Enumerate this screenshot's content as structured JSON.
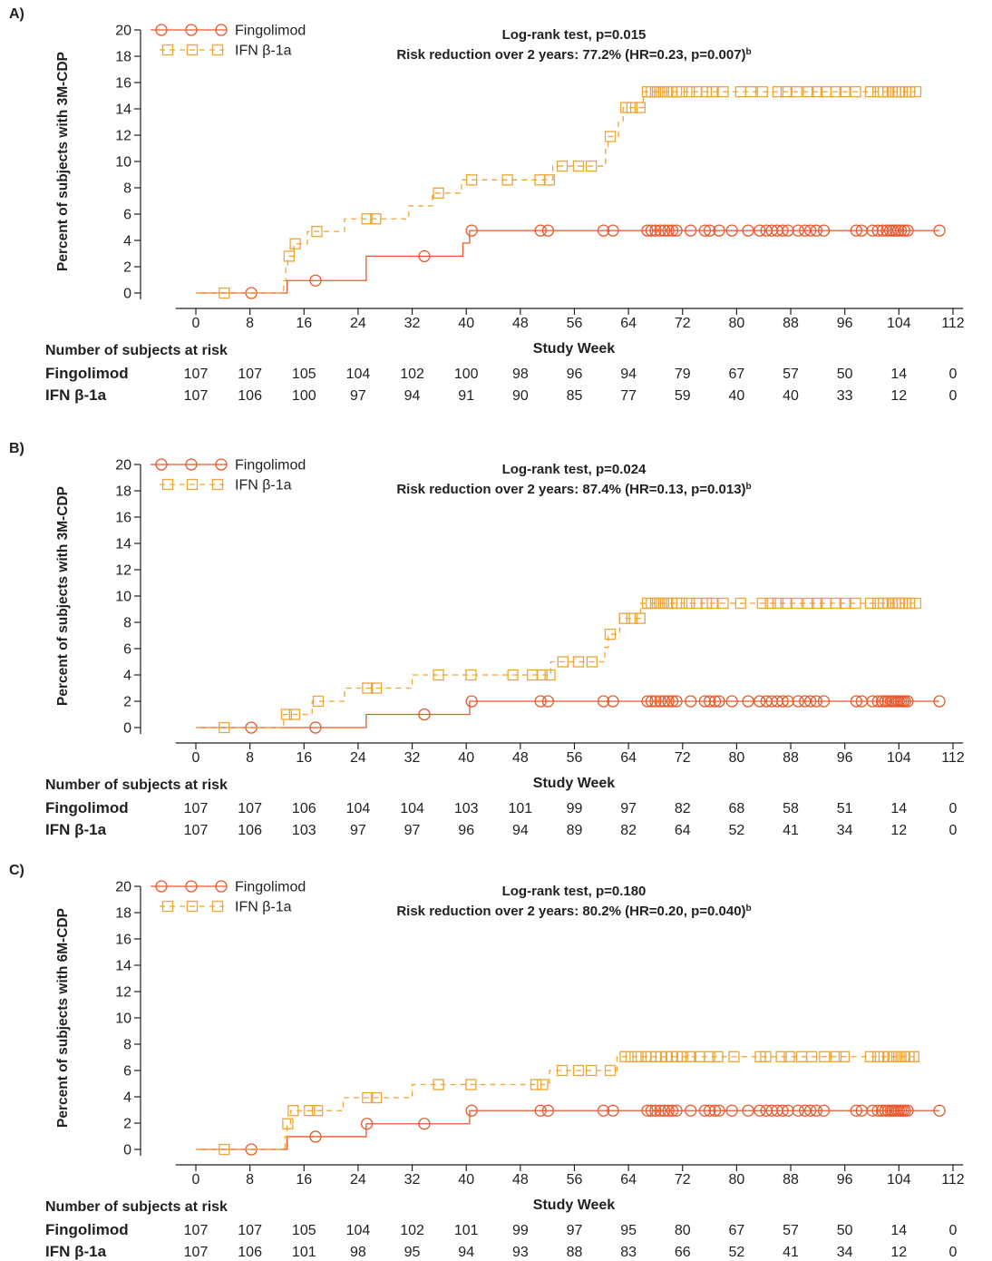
{
  "colors": {
    "fingolimod": "#E8592C",
    "ifn": "#EFA433"
  },
  "chart_data": [
    {
      "panel_label": "A)",
      "type": "line",
      "title": "Log-rank test, p=0.015",
      "subtitle": "Risk reduction over 2 years: 77.2% (HR=0.23, p=0.007)",
      "subtitle_superscript": "b",
      "xlabel": "Study Week",
      "ylabel": "Percent of subjects with 3M-CDP",
      "xlim": [
        0,
        112
      ],
      "ylim": [
        0,
        20
      ],
      "xticks": [
        0,
        8,
        16,
        24,
        32,
        40,
        48,
        56,
        64,
        72,
        80,
        88,
        96,
        104,
        112
      ],
      "yticks": [
        0,
        2,
        4,
        6,
        8,
        10,
        12,
        14,
        16,
        18,
        20
      ],
      "grid": false,
      "legend": "top-left",
      "series": [
        {
          "name": "Fingolimod",
          "steps": [
            [
              0,
              0
            ],
            [
              13.5,
              0.95
            ],
            [
              25.2,
              2.8
            ],
            [
              39.5,
              3.8
            ],
            [
              40.5,
              4.75
            ]
          ],
          "censored_weeks": [
            8.2,
            17.7,
            33.8,
            40.8,
            51.0,
            52.1,
            60.3,
            61.7,
            66.8,
            67.4,
            68.0,
            68.7,
            69.3,
            69.9,
            70.5,
            71.1,
            73.2,
            75.3,
            76.0,
            77.4,
            79.3,
            81.7,
            83.4,
            84.4,
            85.2,
            86.0,
            86.8,
            87.6,
            89.1,
            90.1,
            90.9,
            91.8,
            92.9,
            97.7,
            98.5,
            100.1,
            100.9,
            101.6,
            102.2,
            102.7,
            103.1,
            103.5,
            103.9,
            104.3,
            104.8,
            105.3,
            110.0
          ]
        },
        {
          "name": "IFN β-1a",
          "steps": [
            [
              0,
              0
            ],
            [
              13.0,
              0.93
            ],
            [
              13.3,
              1.87
            ],
            [
              13.6,
              2.8
            ],
            [
              14.5,
              3.74
            ],
            [
              16.5,
              4.68
            ],
            [
              22.0,
              5.64
            ],
            [
              31.5,
              6.62
            ],
            [
              35.0,
              7.6
            ],
            [
              39.3,
              8.6
            ],
            [
              52.8,
              9.65
            ],
            [
              60.6,
              10.9
            ],
            [
              61.0,
              11.9
            ],
            [
              62.5,
              13.0
            ],
            [
              63.2,
              14.1
            ],
            [
              66.2,
              15.3
            ]
          ],
          "censored_weeks": [
            4.2,
            13.8,
            14.7,
            17.9,
            25.3,
            26.6,
            35.9,
            40.8,
            46.1,
            50.9,
            52.3,
            54.2,
            56.6,
            58.5,
            61.3,
            63.6,
            64.5,
            65.7,
            66.8,
            67.4,
            68.0,
            68.6,
            69.2,
            69.8,
            70.4,
            71.1,
            71.9,
            73.0,
            74.1,
            75.5,
            76.4,
            78.0,
            80.6,
            82.1,
            83.8,
            86.1,
            87.3,
            88.9,
            90.6,
            91.9,
            93.2,
            94.7,
            96.0,
            97.6,
            99.8,
            100.9,
            101.7,
            102.4,
            103.0,
            103.5,
            104.0,
            104.5,
            105.0,
            105.6,
            106.5
          ]
        }
      ],
      "at_risk": {
        "title": "Number of subjects at risk",
        "weeks": [
          0,
          8,
          16,
          24,
          32,
          40,
          48,
          56,
          64,
          72,
          80,
          88,
          96,
          104,
          112
        ],
        "rows": [
          {
            "label": "Fingolimod",
            "values": [
              107,
              107,
              105,
              104,
              102,
              100,
              98,
              96,
              94,
              79,
              67,
              57,
              50,
              14,
              0
            ]
          },
          {
            "label": "IFN β-1a",
            "values": [
              107,
              106,
              100,
              97,
              94,
              91,
              90,
              85,
              77,
              59,
              40,
              40,
              33,
              12,
              0
            ]
          }
        ]
      }
    },
    {
      "panel_label": "B)",
      "type": "line",
      "title": "Log-rank test, p=0.024",
      "subtitle": "Risk reduction over 2 years: 87.4% (HR=0.13, p=0.013)",
      "subtitle_superscript": "b",
      "xlabel": "Study Week",
      "ylabel": "Percent of subjects with 3M-CDP",
      "xlim": [
        0,
        112
      ],
      "ylim": [
        0,
        20
      ],
      "xticks": [
        0,
        8,
        16,
        24,
        32,
        40,
        48,
        56,
        64,
        72,
        80,
        88,
        96,
        104,
        112
      ],
      "yticks": [
        0,
        2,
        4,
        6,
        8,
        10,
        12,
        14,
        16,
        18,
        20
      ],
      "grid": false,
      "legend": "top-left",
      "series": [
        {
          "name": "Fingolimod",
          "steps": [
            [
              0,
              0
            ],
            [
              25.2,
              1.0
            ],
            [
              40.5,
              2.0
            ]
          ],
          "censored_weeks": [
            8.2,
            17.7,
            33.8,
            40.8,
            51.0,
            52.1,
            60.3,
            61.7,
            66.8,
            67.4,
            68.0,
            68.7,
            69.3,
            69.9,
            70.5,
            71.1,
            73.2,
            75.3,
            76.0,
            76.8,
            77.4,
            79.3,
            81.7,
            83.4,
            84.4,
            85.2,
            86.0,
            86.8,
            87.6,
            89.1,
            90.1,
            90.9,
            91.8,
            92.9,
            97.7,
            98.5,
            100.1,
            100.9,
            101.5,
            102.0,
            102.4,
            102.8,
            103.1,
            103.4,
            103.7,
            104.0,
            104.3,
            104.6,
            104.9,
            105.3,
            110.0
          ]
        },
        {
          "name": "IFN β-1a",
          "steps": [
            [
              0,
              0
            ],
            [
              13.0,
              1.0
            ],
            [
              17.2,
              2.0
            ],
            [
              22.0,
              3.0
            ],
            [
              32.0,
              4.0
            ],
            [
              52.5,
              5.0
            ],
            [
              60.5,
              6.1
            ],
            [
              61.0,
              7.1
            ],
            [
              62.7,
              8.3
            ],
            [
              65.8,
              9.45
            ]
          ],
          "censored_weeks": [
            4.2,
            13.4,
            14.6,
            18.1,
            25.4,
            26.7,
            35.9,
            40.7,
            46.9,
            49.8,
            51.2,
            52.4,
            54.3,
            56.6,
            58.6,
            61.3,
            63.4,
            64.5,
            65.7,
            66.8,
            67.4,
            68.0,
            68.6,
            69.2,
            69.8,
            70.4,
            71.1,
            71.9,
            73.0,
            74.1,
            75.5,
            76.4,
            78.0,
            80.6,
            83.8,
            85.0,
            86.1,
            87.3,
            88.9,
            90.6,
            91.9,
            93.2,
            94.7,
            96.0,
            97.6,
            99.8,
            100.9,
            101.7,
            102.4,
            103.0,
            103.5,
            104.0,
            104.5,
            105.0,
            105.6,
            106.5
          ]
        }
      ],
      "at_risk": {
        "title": "Number of subjects at risk",
        "weeks": [
          0,
          8,
          16,
          24,
          32,
          40,
          48,
          56,
          64,
          72,
          80,
          88,
          96,
          104,
          112
        ],
        "rows": [
          {
            "label": "Fingolimod",
            "values": [
              107,
              107,
              106,
              104,
              104,
              103,
              101,
              99,
              97,
              82,
              68,
              58,
              51,
              14,
              0
            ]
          },
          {
            "label": "IFN β-1a",
            "values": [
              107,
              106,
              103,
              97,
              97,
              96,
              94,
              89,
              82,
              64,
              52,
              41,
              34,
              12,
              0
            ]
          }
        ]
      }
    },
    {
      "panel_label": "C)",
      "type": "line",
      "title": "Log-rank test, p=0.180",
      "subtitle": "Risk reduction over 2 years: 80.2% (HR=0.20, p=0.040)",
      "subtitle_superscript": "b",
      "xlabel": "Study Week",
      "ylabel": "Percent of subjects with 6M-CDP",
      "xlim": [
        0,
        112
      ],
      "ylim": [
        0,
        20
      ],
      "xticks": [
        0,
        8,
        16,
        24,
        32,
        40,
        48,
        56,
        64,
        72,
        80,
        88,
        96,
        104,
        112
      ],
      "yticks": [
        0,
        2,
        4,
        6,
        8,
        10,
        12,
        14,
        16,
        18,
        20
      ],
      "grid": false,
      "legend": "top-left",
      "series": [
        {
          "name": "Fingolimod",
          "steps": [
            [
              0,
              0
            ],
            [
              13.5,
              0.97
            ],
            [
              25.2,
              1.95
            ],
            [
              40.5,
              2.95
            ]
          ],
          "censored_weeks": [
            8.2,
            17.7,
            25.3,
            33.8,
            40.8,
            51.0,
            52.1,
            60.3,
            61.7,
            66.8,
            67.4,
            68.0,
            68.7,
            69.3,
            69.9,
            70.5,
            71.1,
            73.2,
            75.3,
            76.0,
            76.8,
            77.4,
            79.3,
            81.7,
            83.4,
            84.4,
            85.2,
            86.0,
            86.8,
            87.6,
            89.1,
            90.1,
            90.9,
            91.8,
            92.9,
            97.7,
            98.5,
            100.1,
            100.9,
            101.5,
            102.0,
            102.4,
            102.8,
            103.1,
            103.4,
            103.7,
            104.0,
            104.3,
            104.6,
            104.9,
            105.3,
            110.0
          ]
        },
        {
          "name": "IFN β-1a",
          "steps": [
            [
              0,
              0
            ],
            [
              13.2,
              0.97
            ],
            [
              13.5,
              1.95
            ],
            [
              14.0,
              2.95
            ],
            [
              21.8,
              3.93
            ],
            [
              32.0,
              4.93
            ],
            [
              52.3,
              6.0
            ],
            [
              62.3,
              7.05
            ]
          ],
          "censored_weeks": [
            4.2,
            13.6,
            14.4,
            16.8,
            18.0,
            25.4,
            26.7,
            35.9,
            40.7,
            50.3,
            51.3,
            54.2,
            56.6,
            58.5,
            61.3,
            63.5,
            64.4,
            65.4,
            66.6,
            67.3,
            68.0,
            68.8,
            69.6,
            70.4,
            71.2,
            72.0,
            73.2,
            74.5,
            76.0,
            77.2,
            79.6,
            83.5,
            84.3,
            86.6,
            87.8,
            89.6,
            91.1,
            93.0,
            94.7,
            95.9,
            99.8,
            100.9,
            101.8,
            102.5,
            103.1,
            103.7,
            104.3,
            104.9,
            105.5,
            106.2
          ]
        }
      ],
      "at_risk": {
        "title": "Number of subjects at risk",
        "weeks": [
          0,
          8,
          16,
          24,
          32,
          40,
          48,
          56,
          64,
          72,
          80,
          88,
          96,
          104,
          112
        ],
        "rows": [
          {
            "label": "Fingolimod",
            "values": [
              107,
              107,
              105,
              104,
              102,
              101,
              99,
              97,
              95,
              80,
              67,
              57,
              50,
              14,
              0
            ]
          },
          {
            "label": "IFN β-1a",
            "values": [
              107,
              106,
              101,
              98,
              95,
              94,
              93,
              88,
              83,
              66,
              52,
              41,
              34,
              12,
              0
            ]
          }
        ]
      }
    }
  ]
}
